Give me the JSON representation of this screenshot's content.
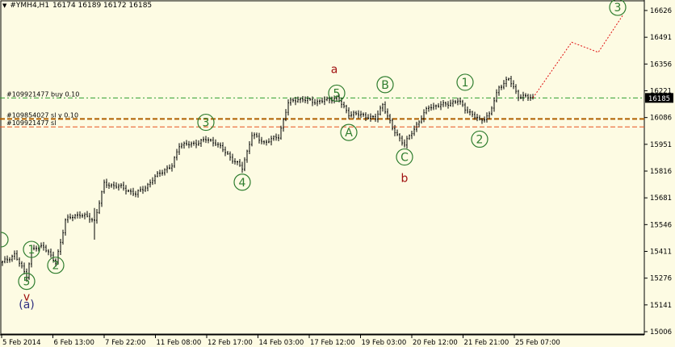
{
  "header": {
    "symbol": "#YMH4,H1",
    "prices": "16174 16189 16172 16185"
  },
  "price_axis": {
    "ticks": [
      "16626",
      "16491",
      "16356",
      "16221",
      "16086",
      "15951",
      "15816",
      "15681",
      "15546",
      "15411",
      "15276",
      "15141",
      "15006"
    ],
    "current_price": "16185"
  },
  "time_axis": {
    "ticks": [
      "5 Feb 2014",
      "6 Feb 13:00",
      "7 Feb 22:00",
      "11 Feb 08:00",
      "12 Feb 17:00",
      "14 Feb 03:00",
      "17 Feb 12:00",
      "19 Feb 03:00",
      "20 Feb 12:00",
      "21 Feb 21:00",
      "25 Feb 07:00"
    ]
  },
  "order_lines": [
    {
      "label": "#109921477 buy 0.10",
      "price": 16185,
      "color": "#2e9e2e"
    },
    {
      "label": "#109854027 sl  y 0.10",
      "price": 16079,
      "color": "#b06000"
    },
    {
      "label": "#109921477 sl",
      "price": 16039,
      "color": "#e8531e"
    }
  ],
  "wave_labels": [
    {
      "text": "1",
      "price": 15421,
      "bar": 12,
      "style": "circle",
      "color": "#2e7d2e"
    },
    {
      "text": "2",
      "price": 15341,
      "bar": 22,
      "style": "circle",
      "color": "#2e7d2e"
    },
    {
      "text": "3",
      "price": 16062,
      "bar": 84,
      "style": "circle",
      "color": "#2e7d2e"
    },
    {
      "text": "4",
      "price": 15760,
      "bar": 99,
      "style": "circle",
      "color": "#2e7d2e"
    },
    {
      "text": "5",
      "price": 16209,
      "bar": 138,
      "style": "circle",
      "color": "#2e7d2e"
    },
    {
      "text": "A",
      "price": 16011,
      "bar": 143,
      "style": "circle",
      "color": "#2e7d2e"
    },
    {
      "text": "B",
      "price": 16252,
      "bar": 158,
      "style": "circle",
      "color": "#2e7d2e"
    },
    {
      "text": "C",
      "price": 15887,
      "bar": 166,
      "style": "circle",
      "color": "#2e7d2e"
    },
    {
      "text": "1",
      "price": 16264,
      "bar": 191,
      "style": "circle",
      "color": "#2e7d2e"
    },
    {
      "text": "2",
      "price": 15977,
      "bar": 197,
      "style": "circle",
      "color": "#2e7d2e"
    },
    {
      "text": "3",
      "price": 16642,
      "bar": 254,
      "style": "circle",
      "color": "#2e7d2e"
    },
    {
      "text": "5",
      "price": 15260,
      "bar": 10,
      "style": "circle",
      "color": "#2e7d2e"
    },
    {
      "text": "a",
      "price": 16330,
      "bar": 137,
      "style": "plain",
      "color": "#a01010"
    },
    {
      "text": "b",
      "price": 15782,
      "bar": 166,
      "style": "plain",
      "color": "#a01010"
    },
    {
      "text": "v",
      "price": 15184,
      "bar": 10,
      "style": "plain",
      "color": "#a01010"
    },
    {
      "text": "(a)",
      "price": 15144,
      "bar": 10,
      "style": "plain",
      "color": "#303080"
    }
  ],
  "forecast_path": [
    {
      "bar": 219,
      "price": 16185
    },
    {
      "bar": 235,
      "price": 16466
    },
    {
      "bar": 246,
      "price": 16415
    },
    {
      "bar": 256,
      "price": 16600
    }
  ],
  "colors": {
    "background": "#fdfbe3",
    "bars": "#000000",
    "wave_green": "#2e7d2e",
    "wave_red": "#a01010",
    "forecast": "#e01010"
  },
  "chart_data": {
    "type": "bar",
    "title": "#YMH4,H1",
    "ylim": [
      15006,
      16626
    ],
    "anchors": [
      [
        0,
        15355
      ],
      [
        5,
        15395
      ],
      [
        10,
        15285
      ],
      [
        12,
        15420
      ],
      [
        17,
        15440
      ],
      [
        22,
        15350
      ],
      [
        26,
        15570
      ],
      [
        32,
        15600
      ],
      [
        38,
        15565
      ],
      [
        40,
        15660
      ],
      [
        42,
        15750
      ],
      [
        48,
        15740
      ],
      [
        55,
        15700
      ],
      [
        60,
        15745
      ],
      [
        65,
        15810
      ],
      [
        70,
        15840
      ],
      [
        73,
        15950
      ],
      [
        78,
        15950
      ],
      [
        84,
        15975
      ],
      [
        88,
        15960
      ],
      [
        95,
        15875
      ],
      [
        99,
        15830
      ],
      [
        103,
        16000
      ],
      [
        108,
        15960
      ],
      [
        114,
        15990
      ],
      [
        118,
        16160
      ],
      [
        122,
        16180
      ],
      [
        130,
        16165
      ],
      [
        138,
        16185
      ],
      [
        143,
        16105
      ],
      [
        148,
        16100
      ],
      [
        154,
        16080
      ],
      [
        157,
        16155
      ],
      [
        161,
        16030
      ],
      [
        166,
        15950
      ],
      [
        171,
        16050
      ],
      [
        176,
        16140
      ],
      [
        182,
        16150
      ],
      [
        188,
        16170
      ],
      [
        192,
        16120
      ],
      [
        197,
        16070
      ],
      [
        201,
        16100
      ],
      [
        205,
        16240
      ],
      [
        209,
        16280
      ],
      [
        213,
        16195
      ],
      [
        219,
        16185
      ]
    ]
  }
}
